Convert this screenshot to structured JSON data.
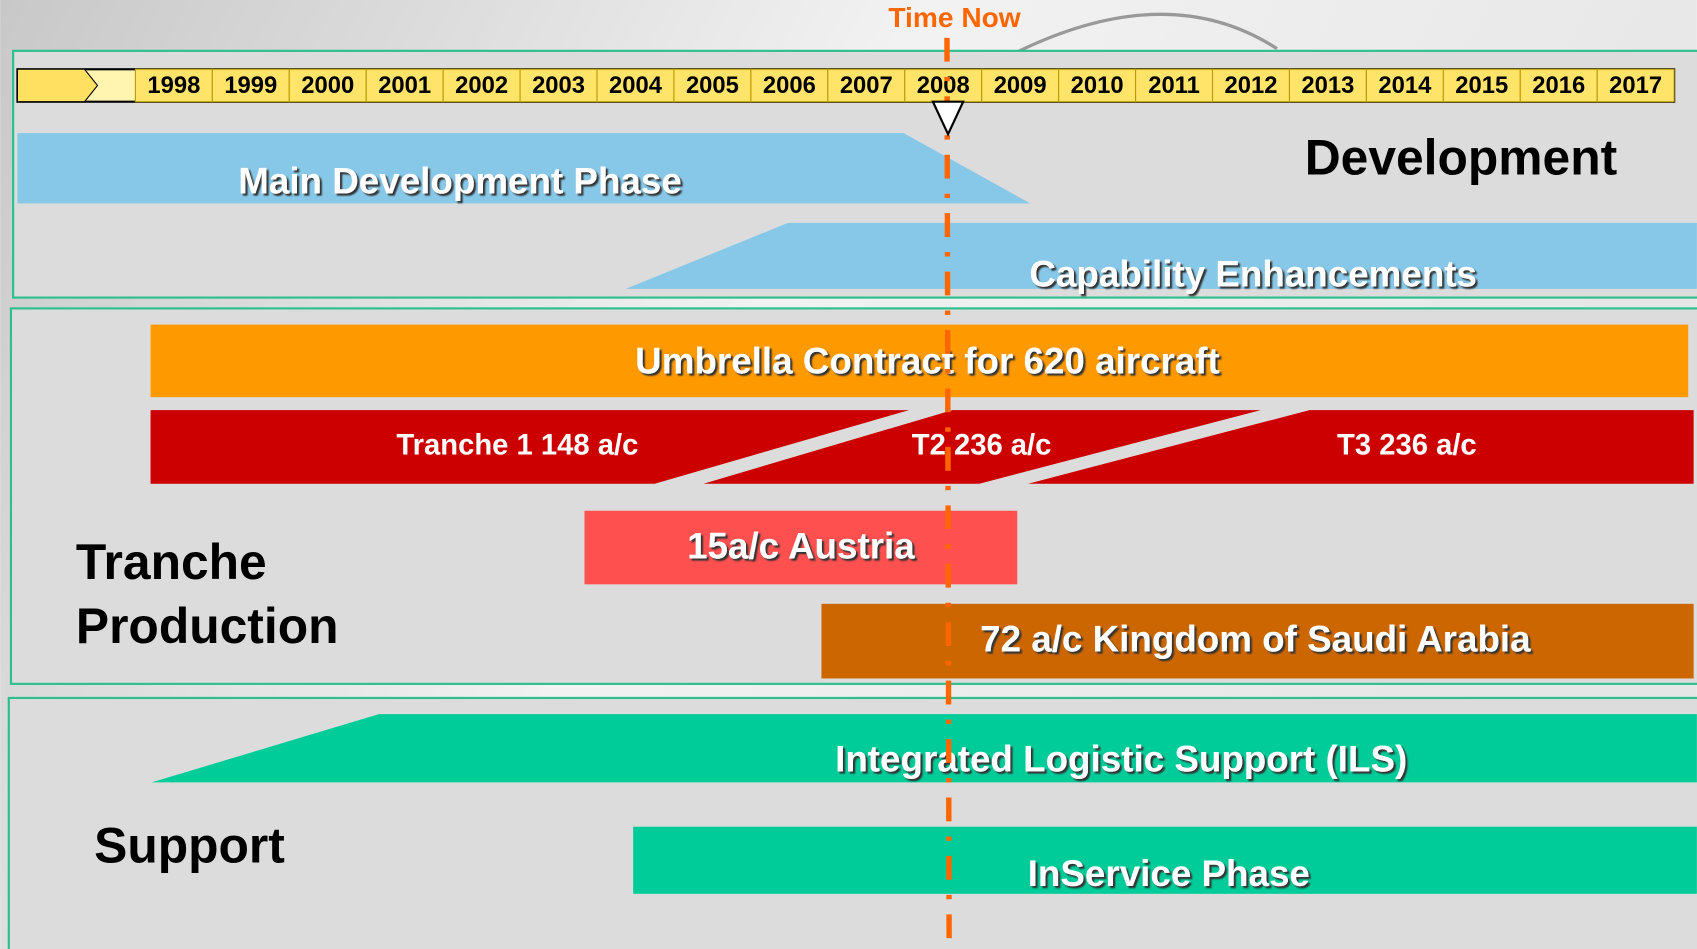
{
  "header": {
    "marker": "Time Now"
  },
  "timeline": {
    "years": [
      "1998",
      "1999",
      "2000",
      "2001",
      "2002",
      "2003",
      "2004",
      "2005",
      "2006",
      "2007",
      "2008",
      "2009",
      "2010",
      "2011",
      "2012",
      "2013",
      "2014",
      "2015",
      "2016",
      "2017"
    ]
  },
  "development": {
    "label": "Development",
    "phases": [
      "Main Development Phase",
      "Capability Enhancements"
    ]
  },
  "production": {
    "label_lines": [
      "Tranche",
      "Production"
    ],
    "contract": "Umbrella Contract for 620 aircraft",
    "tranches": [
      "Tranche 1 148 a/c",
      "T2 236 a/c",
      "T3 236 a/c"
    ],
    "exports": [
      "15a/c Austria",
      "72 a/c Kingdom of Saudi Arabia"
    ]
  },
  "support": {
    "label": "Support",
    "phases": [
      "Integrated Logistic Support (ILS)",
      "InService Phase"
    ]
  }
}
